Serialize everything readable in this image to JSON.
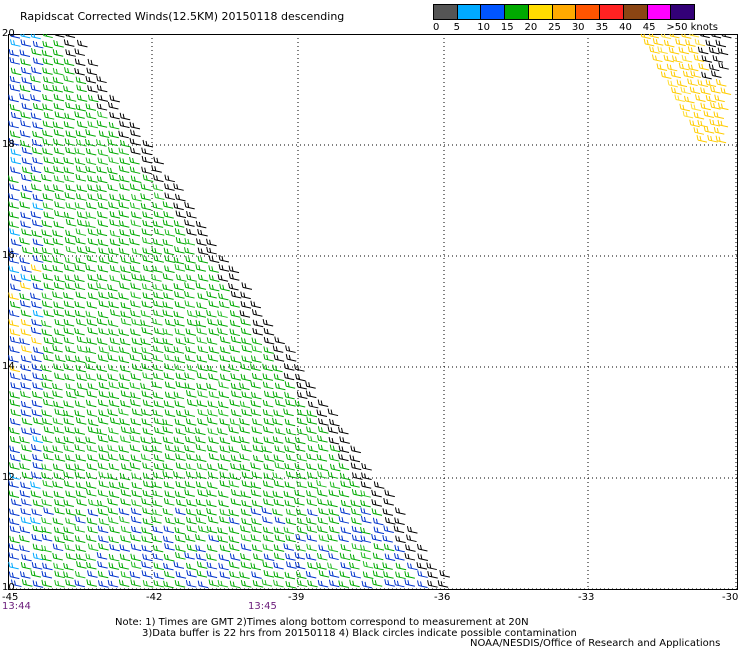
{
  "title": "Rapidscat Corrected Winds(12.5KM) 20150118 descending",
  "scale": {
    "labels": [
      "0",
      "5",
      "10",
      "15",
      "20",
      "25",
      "30",
      "35",
      "40",
      "45",
      ">50 knots"
    ],
    "colors": [
      "#555555",
      "#00aaff",
      "#0055ff",
      "#00aa00",
      "#ffdd00",
      "#ffaa00",
      "#ff5500",
      "#ff2222",
      "#8b4513",
      "#ff00ff",
      "#330077"
    ]
  },
  "map": {
    "lat_labels": [
      "20",
      "18",
      "16",
      "14",
      "12",
      "10"
    ],
    "lon_labels": [
      "-45",
      "-42",
      "-39",
      "-36",
      "-33",
      "-30"
    ],
    "times": [
      "13:44",
      "13:45"
    ]
  },
  "notes": {
    "line1": "Note: 1) Times are GMT 2)Times along bottom correspond to measurement at 20N",
    "line2": "3)Data buffer is 22 hrs from 20150118 4) Black circles indicate possible contamination",
    "line3": "NOAA/NESDIS/Office of Research and Applications"
  }
}
